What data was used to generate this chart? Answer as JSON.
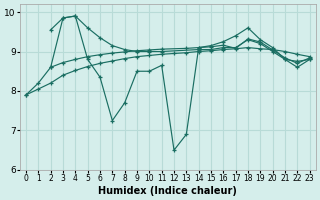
{
  "xlabel": "Humidex (Indice chaleur)",
  "xlim": [
    -0.5,
    23.5
  ],
  "ylim": [
    6,
    10.2
  ],
  "yticks": [
    6,
    7,
    8,
    9,
    10
  ],
  "xticks": [
    0,
    1,
    2,
    3,
    4,
    5,
    6,
    7,
    8,
    9,
    10,
    11,
    12,
    13,
    14,
    15,
    16,
    17,
    18,
    19,
    20,
    21,
    22,
    23
  ],
  "bg_color": "#d5eeeb",
  "grid_color": "#b8dbd7",
  "line_color": "#1a6e62",
  "line1": {
    "x": [
      2,
      3,
      4,
      5,
      6,
      7,
      8,
      9,
      10,
      11,
      14,
      15,
      16,
      17,
      18,
      19,
      20,
      21,
      22,
      23
    ],
    "y": [
      9.55,
      9.85,
      9.9,
      9.6,
      9.35,
      9.15,
      9.05,
      9.0,
      9.0,
      9.0,
      9.05,
      9.05,
      9.1,
      9.1,
      9.3,
      9.2,
      9.0,
      8.8,
      8.75,
      8.8
    ]
  },
  "line2": {
    "x": [
      0,
      1,
      2,
      3,
      4,
      5,
      6,
      7,
      8,
      9,
      10,
      11,
      12,
      13,
      14,
      15,
      16,
      17,
      18,
      19,
      20,
      21,
      22,
      23
    ],
    "y": [
      7.9,
      8.2,
      8.6,
      9.85,
      9.9,
      8.8,
      8.35,
      7.25,
      7.7,
      8.5,
      8.5,
      8.65,
      6.5,
      6.9,
      9.1,
      9.15,
      9.25,
      9.4,
      9.6,
      9.3,
      9.1,
      8.8,
      8.6,
      8.8
    ]
  },
  "line3": {
    "x": [
      0,
      1,
      2,
      3,
      4,
      5,
      6,
      7,
      8,
      9,
      10,
      11,
      12,
      13,
      14,
      15,
      16,
      17,
      18,
      19,
      20,
      21,
      22,
      23
    ],
    "y": [
      7.9,
      8.05,
      8.2,
      8.4,
      8.52,
      8.62,
      8.7,
      8.76,
      8.82,
      8.87,
      8.9,
      8.93,
      8.95,
      8.97,
      9.0,
      9.02,
      9.05,
      9.07,
      9.1,
      9.07,
      9.05,
      9.0,
      8.93,
      8.87
    ]
  },
  "line4": {
    "x": [
      2,
      3,
      4,
      5,
      6,
      7,
      8,
      9,
      10,
      11,
      13,
      14,
      15,
      16,
      17,
      18,
      19,
      20,
      21,
      22,
      23
    ],
    "y": [
      8.6,
      8.72,
      8.8,
      8.87,
      8.92,
      8.96,
      8.99,
      9.02,
      9.04,
      9.06,
      9.08,
      9.1,
      9.12,
      9.16,
      9.08,
      9.32,
      9.24,
      9.04,
      8.84,
      8.7,
      8.84
    ]
  }
}
